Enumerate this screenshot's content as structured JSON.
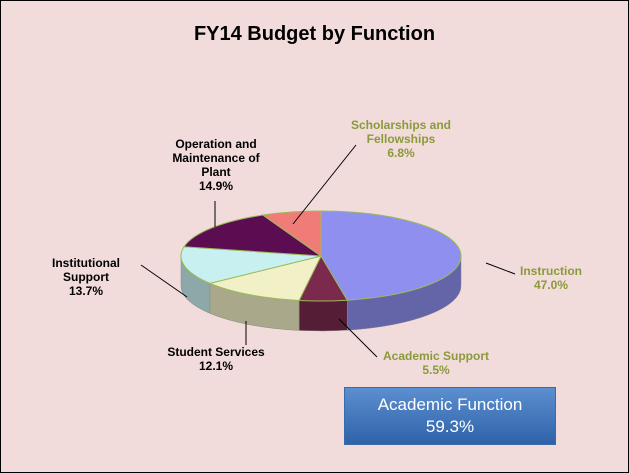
{
  "chart_data": {
    "type": "pie",
    "title": "FY14 Budget by Function",
    "categories": [
      "Instruction",
      "Academic Support",
      "Student Services",
      "Institutional Support",
      "Operation and Maintenance of Plant",
      "Scholarships and Fellowships"
    ],
    "values": [
      47.0,
      5.5,
      12.1,
      13.7,
      14.9,
      6.8
    ],
    "value_labels": [
      "47.0%",
      "5.5%",
      "12.1%",
      "13.7%",
      "14.9%",
      "6.8%"
    ],
    "colors": [
      "#8f8ff0",
      "#7b2a4e",
      "#f2f0c6",
      "#c9f0f0",
      "#5c0d52",
      "#f07c78"
    ],
    "label_colors": [
      "#8a9a3a",
      "#8a9a3a",
      "#000000",
      "#000000",
      "#000000",
      "#8a9a3a"
    ],
    "annotation": {
      "text": "Academic Function",
      "value": "59.3%"
    }
  }
}
